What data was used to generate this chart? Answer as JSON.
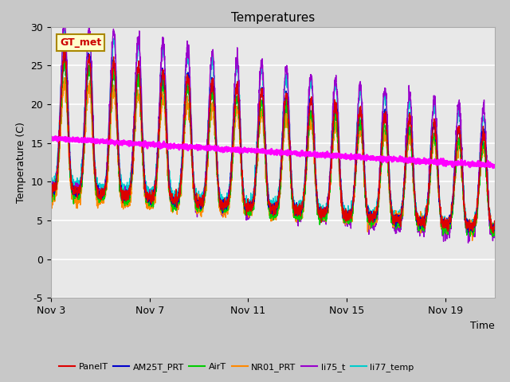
{
  "title": "Temperatures",
  "xlabel": "Time",
  "ylabel": "Temperature (C)",
  "xlim_days": [
    3,
    21
  ],
  "ylim": [
    -5,
    30
  ],
  "yticks": [
    -5,
    0,
    5,
    10,
    15,
    20,
    25,
    30
  ],
  "xtick_labels": [
    "Nov 3",
    "Nov 7",
    "Nov 11",
    "Nov 15",
    "Nov 19"
  ],
  "xtick_days": [
    3,
    7,
    11,
    15,
    19
  ],
  "gt_met_label": "GT_met",
  "fig_bg_color": "#c8c8c8",
  "plot_bg_color": "#e8e8e8",
  "grid_color": "#ffffff",
  "series_PanelT_color": "#dd0000",
  "series_AM25T_PRT_color": "#0000cc",
  "series_AirT_color": "#00cc00",
  "series_NR01_PRT_color": "#ff8800",
  "series_li75_t_color": "#9900cc",
  "series_li77_temp_color": "#00cccc",
  "series_TC_color": "#ff00ff",
  "lw_thin": 1.0,
  "lw_thick": 2.0,
  "legend_fontsize": 8,
  "title_fontsize": 11,
  "tick_fontsize": 9,
  "gt_box_fc": "#ffffcc",
  "gt_box_ec": "#aa8800",
  "gt_text_color": "#cc0000"
}
